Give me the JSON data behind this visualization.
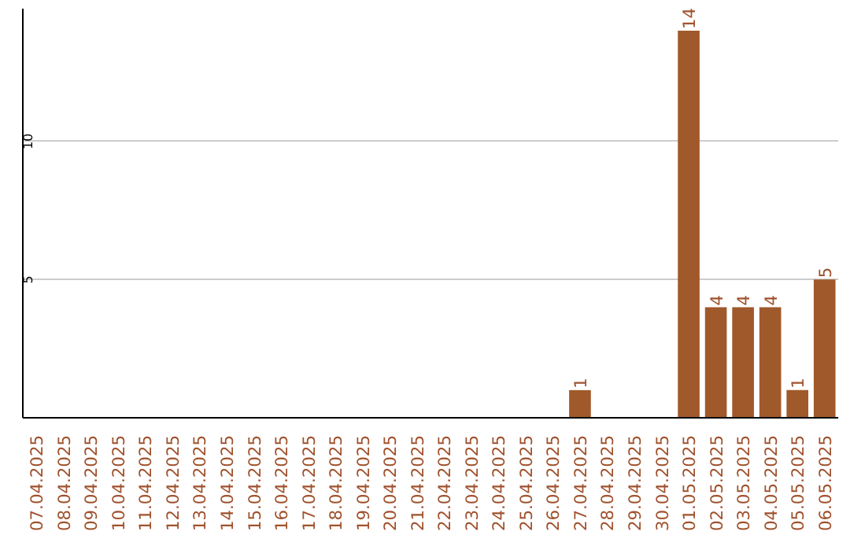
{
  "chart_data": {
    "type": "bar",
    "categories": [
      "07.04.2025",
      "08.04.2025",
      "09.04.2025",
      "10.04.2025",
      "11.04.2025",
      "12.04.2025",
      "13.04.2025",
      "14.04.2025",
      "15.04.2025",
      "16.04.2025",
      "17.04.2025",
      "18.04.2025",
      "19.04.2025",
      "20.04.2025",
      "21.04.2025",
      "22.04.2025",
      "23.04.2025",
      "24.04.2025",
      "25.04.2025",
      "26.04.2025",
      "27.04.2025",
      "28.04.2025",
      "29.04.2025",
      "30.04.2025",
      "01.05.2025",
      "02.05.2025",
      "03.05.2025",
      "04.05.2025",
      "05.05.2025",
      "06.05.2025"
    ],
    "values": [
      0,
      0,
      0,
      0,
      0,
      0,
      0,
      0,
      0,
      0,
      0,
      0,
      0,
      0,
      0,
      0,
      0,
      0,
      0,
      0,
      1,
      0,
      0,
      0,
      14,
      4,
      4,
      4,
      1,
      5
    ],
    "value_labels": [
      null,
      null,
      null,
      null,
      null,
      null,
      null,
      null,
      null,
      null,
      null,
      null,
      null,
      null,
      null,
      null,
      null,
      null,
      null,
      null,
      "1",
      null,
      null,
      null,
      "14",
      "4",
      "4",
      "4",
      "1",
      "5"
    ],
    "color": "#a0592a",
    "ylim": [
      0,
      14.8
    ],
    "yticks": [
      5,
      10
    ],
    "grid": "y"
  }
}
